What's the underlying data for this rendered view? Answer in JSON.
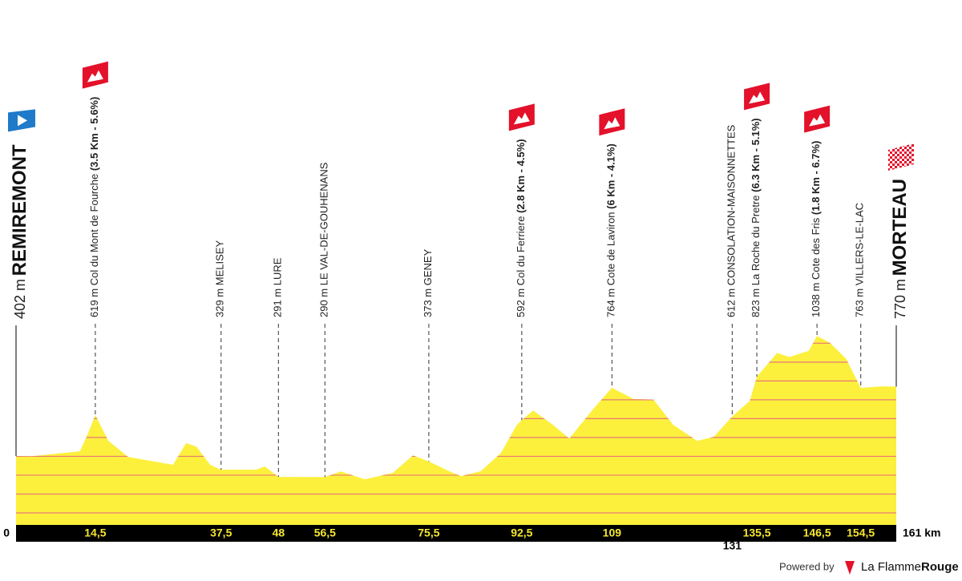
{
  "chart_data": {
    "type": "area",
    "color": "#fcf03c",
    "x": [
      0,
      2.9,
      11.7,
      13.2,
      14.5,
      16.9,
      20.5,
      28.7,
      31.1,
      33,
      35.5,
      37.5,
      43.9,
      45.5,
      48,
      56.5,
      59.4,
      63.8,
      68.9,
      72.6,
      75.5,
      79.2,
      81.4,
      85,
      88.7,
      91.6,
      92.5,
      94.6,
      98.2,
      101.2,
      105.6,
      109,
      112.9,
      116.6,
      120.2,
      124.6,
      127.6,
      131,
      134.2,
      135.5,
      139.2,
      141.5,
      143.7,
      145,
      146.5,
      148.8,
      151.8,
      154.5,
      158.4,
      161
    ],
    "values": [
      402,
      401,
      427,
      524,
      619,
      482,
      397,
      355,
      470,
      452,
      355,
      329,
      329,
      346,
      291,
      290,
      320,
      278,
      312,
      405,
      373,
      321,
      295,
      321,
      418,
      567,
      592,
      643,
      567,
      495,
      652,
      764,
      705,
      701,
      567,
      482,
      503,
      612,
      694,
      823,
      948,
      927,
      948,
      960,
      1038,
      1004,
      919,
      763,
      771,
      770
    ],
    "xlim": [
      0,
      161
    ],
    "xticks": [
      0,
      {
        "value": 14.5,
        "label": "14,5"
      },
      {
        "value": 37.5,
        "label": "37,5"
      },
      48,
      {
        "value": 56.5,
        "label": "56,5"
      },
      {
        "value": 75.5,
        "label": "75,5"
      },
      {
        "value": 92.5,
        "label": "92,5"
      },
      109,
      131,
      {
        "value": 135.5,
        "label": "135,5"
      },
      {
        "value": 146.5,
        "label": "146,5"
      },
      {
        "value": 154.5,
        "label": "154,5"
      },
      {
        "value": 161,
        "label": "161 km"
      }
    ],
    "ylim": [
      0,
      2800
    ],
    "yticks": [
      100,
      200,
      300,
      400,
      500,
      600,
      700,
      800,
      900,
      1000
    ],
    "ytick_labels": false,
    "grid": true,
    "grid_color": "#e8797a",
    "waypoints": [
      {
        "elevation": 402,
        "elevation_label": "402 m",
        "name": "REMIREMONT",
        "marker": "start"
      },
      {
        "elevation": 619,
        "elevation_label": "619 m",
        "name": "Col du Mont de Fourche",
        "climb": "(3.5 Km - 5.6%)",
        "marker": "climb"
      },
      {
        "elevation": 329,
        "elevation_label": "329 m",
        "name": "MELISEY"
      },
      {
        "elevation": 291,
        "elevation_label": "291 m",
        "name": "LURE"
      },
      {
        "elevation": 290,
        "elevation_label": "290 m",
        "name": "LE VAL-DE-GOUHENANS"
      },
      {
        "elevation": 373,
        "elevation_label": "373 m",
        "name": "GENEY"
      },
      {
        "elevation": 592,
        "elevation_label": "592 m",
        "name": "Col du Ferriere",
        "climb": "(2.8 Km - 4.5%)",
        "marker": "climb"
      },
      {
        "elevation": 764,
        "elevation_label": "764 m",
        "name": "Cote de Laviron",
        "climb": "(6 Km - 4.1%)",
        "marker": "climb"
      },
      {
        "elevation": 612,
        "elevation_label": "612 m",
        "name": "CONSOLATION-MAISONNETTES"
      },
      {
        "elevation": 823,
        "elevation_label": "823 m",
        "name": "La Roche du Pretre",
        "climb": "(6.3 Km - 5.1%)",
        "marker": "climb"
      },
      {
        "elevation": 1038,
        "elevation_label": "1038 m",
        "name": "Cote des Fris",
        "climb": "(1.8 Km - 6.7%)",
        "marker": "climb"
      },
      {
        "elevation": 763,
        "elevation_label": "763 m",
        "name": "VILLERS-LE-LAC"
      },
      {
        "elevation": 770,
        "elevation_label": "770 m",
        "name": "MORTEAU",
        "marker": "finish"
      }
    ]
  },
  "footer": {
    "powered_by": "Powered by",
    "brand_a": "La Flamme",
    "brand_b": "Rouge"
  }
}
